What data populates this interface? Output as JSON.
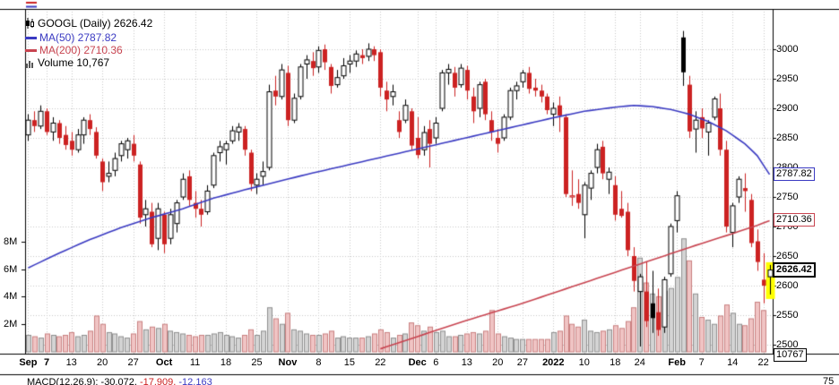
{
  "legend": {
    "symbol_line": "GOOGL (Daily) 2626.42",
    "ma50_line": "MA(50) 2787.82",
    "ma200_line": "MA(200) 2710.36",
    "volume_line": "Volume 10,767"
  },
  "right_axis": {
    "ticks": [
      3000,
      2950,
      2900,
      2850,
      2800,
      2750,
      2700,
      2650,
      2600,
      2550,
      2500
    ],
    "boxes": {
      "ma50": "2787.82",
      "ma200": "2710.36",
      "last": "2626.42",
      "volume": "10767"
    }
  },
  "left_axis": {
    "ticks": [
      {
        "v": 8,
        "t": "8M"
      },
      {
        "v": 6,
        "t": "6M"
      },
      {
        "v": 4,
        "t": "4M"
      },
      {
        "v": 2,
        "t": "2M"
      }
    ]
  },
  "x_axis": {
    "labels": [
      {
        "i": 0,
        "t": "Sep",
        "b": true
      },
      {
        "i": 3,
        "t": "7",
        "b": true
      },
      {
        "i": 7,
        "t": "13",
        "b": false
      },
      {
        "i": 12,
        "t": "20",
        "b": false
      },
      {
        "i": 17,
        "t": "27",
        "b": false
      },
      {
        "i": 22,
        "t": "Oct",
        "b": true
      },
      {
        "i": 27,
        "t": "11",
        "b": false
      },
      {
        "i": 32,
        "t": "18",
        "b": false
      },
      {
        "i": 37,
        "t": "25",
        "b": false
      },
      {
        "i": 42,
        "t": "Nov",
        "b": true
      },
      {
        "i": 47,
        "t": "8",
        "b": false
      },
      {
        "i": 52,
        "t": "15",
        "b": false
      },
      {
        "i": 57,
        "t": "22",
        "b": false
      },
      {
        "i": 63,
        "t": "Dec",
        "b": true
      },
      {
        "i": 66,
        "t": "6",
        "b": false
      },
      {
        "i": 71,
        "t": "13",
        "b": false
      },
      {
        "i": 76,
        "t": "20",
        "b": false
      },
      {
        "i": 80,
        "t": "27",
        "b": false
      },
      {
        "i": 85,
        "t": "2022",
        "b": true
      },
      {
        "i": 90,
        "t": "10",
        "b": false
      },
      {
        "i": 95,
        "t": "18",
        "b": false
      },
      {
        "i": 99,
        "t": "24",
        "b": false
      },
      {
        "i": 105,
        "t": "Feb",
        "b": true
      },
      {
        "i": 109,
        "t": "7",
        "b": false
      },
      {
        "i": 114,
        "t": "14",
        "b": false
      },
      {
        "i": 119,
        "t": "22",
        "b": false
      }
    ]
  },
  "bottom_panel": {
    "legend_parts": [
      {
        "t": "MACD(12,26,9): ",
        "c": "#000000"
      },
      {
        "t": "-30.072, ",
        "c": "#000000"
      },
      {
        "t": "-17.909, ",
        "c": "#cc2222"
      },
      {
        "t": "-12.163",
        "c": "#3a3ac2"
      }
    ],
    "right_label": "75"
  },
  "colors": {
    "up": "#000000",
    "down": "#cc2222",
    "ma50": "#3a3ac2",
    "ma200": "#c84450",
    "vol_up_fill": "#d4d4d4",
    "vol_up_stroke": "#8f8f8f",
    "vol_down_fill": "#f0c4c4",
    "vol_down_stroke": "#c98080",
    "grid": "#c9c9c9",
    "highlight": "#ffff00"
  },
  "chart_data": {
    "type": "candlestick",
    "title": "GOOGL (Daily)",
    "last_price": 2626.42,
    "ma50_last": 2787.82,
    "ma200_last": 2710.36,
    "volume_last": 10767,
    "price_axis_range": [
      2500,
      3000
    ],
    "volume_axis_max_millions": 8,
    "candles_format": [
      "date",
      "open",
      "high",
      "low",
      "close",
      "volume_millions"
    ],
    "candles": [
      [
        "Sep 1",
        2855,
        2890,
        2845,
        2880,
        1.2
      ],
      [
        "Sep 2",
        2880,
        2895,
        2860,
        2870,
        1.1
      ],
      [
        "Sep 3",
        2870,
        2905,
        2865,
        2895,
        1.0
      ],
      [
        "Sep 7",
        2895,
        2900,
        2855,
        2860,
        1.3
      ],
      [
        "Sep 8",
        2860,
        2885,
        2845,
        2875,
        1.2
      ],
      [
        "Sep 9",
        2875,
        2880,
        2840,
        2850,
        1.1
      ],
      [
        "Sep 10",
        2855,
        2870,
        2830,
        2838,
        1.2
      ],
      [
        "Sep 13",
        2845,
        2860,
        2820,
        2830,
        1.4
      ],
      [
        "Sep 14",
        2830,
        2865,
        2825,
        2855,
        1.1
      ],
      [
        "Sep 15",
        2855,
        2885,
        2840,
        2880,
        1.2
      ],
      [
        "Sep 16",
        2880,
        2890,
        2855,
        2865,
        1.5
      ],
      [
        "Sep 17",
        2860,
        2868,
        2815,
        2820,
        2.6
      ],
      [
        "Sep 20",
        2810,
        2815,
        2760,
        2775,
        2.0
      ],
      [
        "Sep 21",
        2785,
        2810,
        2775,
        2790,
        1.4
      ],
      [
        "Sep 22",
        2795,
        2825,
        2785,
        2815,
        1.3
      ],
      [
        "Sep 23",
        2820,
        2845,
        2810,
        2840,
        1.1
      ],
      [
        "Sep 24",
        2830,
        2850,
        2815,
        2845,
        1.0
      ],
      [
        "Sep 27",
        2840,
        2855,
        2810,
        2820,
        1.3
      ],
      [
        "Sep 28",
        2805,
        2810,
        2705,
        2715,
        2.2
      ],
      [
        "Sep 29",
        2720,
        2745,
        2700,
        2730,
        1.6
      ],
      [
        "Sep 30",
        2725,
        2740,
        2665,
        2670,
        1.8
      ],
      [
        "Oct 1",
        2680,
        2740,
        2660,
        2730,
        1.7
      ],
      [
        "Oct 4",
        2720,
        2725,
        2655,
        2670,
        2.0
      ],
      [
        "Oct 5",
        2680,
        2730,
        2670,
        2720,
        1.5
      ],
      [
        "Oct 6",
        2705,
        2745,
        2690,
        2740,
        1.4
      ],
      [
        "Oct 7",
        2750,
        2790,
        2745,
        2780,
        1.3
      ],
      [
        "Oct 8",
        2785,
        2795,
        2735,
        2745,
        1.2
      ],
      [
        "Oct 11",
        2740,
        2760,
        2715,
        2730,
        1.1
      ],
      [
        "Oct 12",
        2730,
        2745,
        2700,
        2720,
        1.2
      ],
      [
        "Oct 13",
        2725,
        2770,
        2720,
        2760,
        1.2
      ],
      [
        "Oct 14",
        2770,
        2825,
        2765,
        2820,
        1.3
      ],
      [
        "Oct 15",
        2825,
        2845,
        2810,
        2835,
        1.4
      ],
      [
        "Oct 18",
        2830,
        2845,
        2805,
        2840,
        1.2
      ],
      [
        "Oct 19",
        2845,
        2870,
        2840,
        2862,
        1.1
      ],
      [
        "Oct 20",
        2860,
        2875,
        2845,
        2868,
        1.0
      ],
      [
        "Oct 21",
        2865,
        2870,
        2820,
        2830,
        1.2
      ],
      [
        "Oct 22",
        2825,
        2830,
        2760,
        2772,
        1.6
      ],
      [
        "Oct 25",
        2770,
        2790,
        2755,
        2780,
        1.2
      ],
      [
        "Oct 26",
        2785,
        2810,
        2770,
        2793,
        1.5
      ],
      [
        "Oct 27",
        2800,
        2940,
        2795,
        2928,
        3.2
      ],
      [
        "Oct 28",
        2930,
        2955,
        2905,
        2920,
        2.4
      ],
      [
        "Oct 29",
        2920,
        2975,
        2915,
        2965,
        2.0
      ],
      [
        "Nov 1",
        2960,
        2972,
        2870,
        2880,
        2.8
      ],
      [
        "Nov 2",
        2880,
        2925,
        2875,
        2917,
        1.6
      ],
      [
        "Nov 3",
        2920,
        2975,
        2915,
        2970,
        1.5
      ],
      [
        "Nov 4",
        2975,
        2990,
        2950,
        2982,
        1.3
      ],
      [
        "Nov 5",
        2980,
        2995,
        2955,
        2968,
        1.2
      ],
      [
        "Nov 8",
        2970,
        3005,
        2960,
        2998,
        1.2
      ],
      [
        "Nov 9",
        3000,
        3008,
        2965,
        2978,
        1.3
      ],
      [
        "Nov 10",
        2970,
        2975,
        2925,
        2938,
        1.5
      ],
      [
        "Nov 11",
        2940,
        2965,
        2935,
        2952,
        1.0
      ],
      [
        "Nov 12",
        2955,
        2985,
        2950,
        2972,
        1.1
      ],
      [
        "Nov 15",
        2975,
        2990,
        2960,
        2980,
        1.0
      ],
      [
        "Nov 16",
        2980,
        2998,
        2970,
        2992,
        1.0
      ],
      [
        "Nov 17",
        2990,
        3000,
        2975,
        2985,
        1.0
      ],
      [
        "Nov 18",
        2988,
        3010,
        2980,
        3000,
        1.1
      ],
      [
        "Nov 19",
        3000,
        3005,
        2980,
        2990,
        1.3
      ],
      [
        "Nov 22",
        2995,
        3000,
        2920,
        2935,
        1.6
      ],
      [
        "Nov 23",
        2930,
        2945,
        2895,
        2915,
        1.4
      ],
      [
        "Nov 24",
        2920,
        2940,
        2905,
        2928,
        1.0
      ],
      [
        "Nov 26",
        2880,
        2895,
        2850,
        2860,
        1.2
      ],
      [
        "Nov 29",
        2880,
        2915,
        2875,
        2905,
        1.3
      ],
      [
        "Nov 30",
        2895,
        2900,
        2830,
        2837,
        2.1
      ],
      [
        "Dec 1",
        2850,
        2885,
        2815,
        2821,
        1.9
      ],
      [
        "Dec 2",
        2830,
        2870,
        2820,
        2859,
        1.5
      ],
      [
        "Dec 3",
        2865,
        2880,
        2800,
        2840,
        1.8
      ],
      [
        "Dec 6",
        2850,
        2885,
        2840,
        2875,
        1.4
      ],
      [
        "Dec 7",
        2900,
        2965,
        2895,
        2960,
        1.5
      ],
      [
        "Dec 8",
        2960,
        2975,
        2940,
        2966,
        1.1
      ],
      [
        "Dec 9",
        2960,
        2970,
        2920,
        2935,
        1.1
      ],
      [
        "Dec 10",
        2940,
        2975,
        2935,
        2968,
        1.2
      ],
      [
        "Dec 13",
        2965,
        2972,
        2915,
        2930,
        1.3
      ],
      [
        "Dec 14",
        2920,
        2935,
        2875,
        2895,
        1.4
      ],
      [
        "Dec 15",
        2900,
        2945,
        2885,
        2940,
        1.3
      ],
      [
        "Dec 16",
        2945,
        2950,
        2880,
        2890,
        1.5
      ],
      [
        "Dec 17",
        2880,
        2895,
        2845,
        2860,
        3.0
      ],
      [
        "Dec 20",
        2850,
        2865,
        2825,
        2840,
        1.3
      ],
      [
        "Dec 21",
        2850,
        2890,
        2845,
        2885,
        1.1
      ],
      [
        "Dec 22",
        2885,
        2935,
        2880,
        2930,
        1.0
      ],
      [
        "Dec 23",
        2930,
        2945,
        2915,
        2938,
        0.9
      ],
      [
        "Dec 27",
        2945,
        2965,
        2935,
        2960,
        0.9
      ],
      [
        "Dec 28",
        2960,
        2970,
        2925,
        2933,
        0.9
      ],
      [
        "Dec 29",
        2935,
        2950,
        2920,
        2930,
        0.9
      ],
      [
        "Dec 30",
        2930,
        2940,
        2910,
        2920,
        0.9
      ],
      [
        "Dec 31",
        2920,
        2925,
        2890,
        2897,
        0.9
      ],
      [
        "Jan 3",
        2890,
        2910,
        2870,
        2900,
        1.4
      ],
      [
        "Jan 4",
        2905,
        2920,
        2860,
        2888,
        1.5
      ],
      [
        "Jan 5",
        2885,
        2890,
        2750,
        2755,
        2.6
      ],
      [
        "Jan 6",
        2750,
        2795,
        2735,
        2752,
        2.0
      ],
      [
        "Jan 7",
        2755,
        2780,
        2730,
        2740,
        1.8
      ],
      [
        "Jan 10",
        2720,
        2775,
        2680,
        2770,
        2.3
      ],
      [
        "Jan 11",
        2765,
        2795,
        2745,
        2790,
        1.5
      ],
      [
        "Jan 12",
        2800,
        2840,
        2790,
        2830,
        1.4
      ],
      [
        "Jan 13",
        2835,
        2845,
        2780,
        2790,
        1.5
      ],
      [
        "Jan 14",
        2780,
        2800,
        2755,
        2792,
        1.6
      ],
      [
        "Jan 18",
        2770,
        2785,
        2710,
        2720,
        1.9
      ],
      [
        "Jan 19",
        2730,
        2760,
        2715,
        2718,
        1.7
      ],
      [
        "Jan 20",
        2725,
        2740,
        2650,
        2660,
        2.2
      ],
      [
        "Jan 21",
        2650,
        2665,
        2590,
        2608,
        3.2
      ],
      [
        "Jan 24",
        2590,
        2620,
        2497,
        2615,
        6.8
      ],
      [
        "Jan 25",
        2590,
        2640,
        2530,
        2540,
        5.0
      ],
      [
        "Jan 26",
        2570,
        2625,
        2520,
        2545,
        4.2
      ],
      [
        "Jan 27",
        2555,
        2595,
        2515,
        2525,
        4.0
      ],
      [
        "Jan 28",
        2530,
        2615,
        2520,
        2610,
        4.4
      ],
      [
        "Jan 31",
        2620,
        2705,
        2615,
        2700,
        4.6
      ],
      [
        "Feb 1",
        2710,
        2760,
        2690,
        2752,
        5.4
      ],
      [
        "Feb 2",
        3020,
        3031,
        2938,
        2961,
        8.2
      ],
      [
        "Feb 3",
        2940,
        2955,
        2850,
        2861,
        6.6
      ],
      [
        "Feb 4",
        2865,
        2895,
        2825,
        2880,
        4.2
      ],
      [
        "Feb 7",
        2885,
        2900,
        2850,
        2866,
        2.5
      ],
      [
        "Feb 8",
        2860,
        2880,
        2820,
        2875,
        2.3
      ],
      [
        "Feb 9",
        2885,
        2920,
        2880,
        2916,
        2.0
      ],
      [
        "Feb 10",
        2900,
        2925,
        2820,
        2830,
        2.6
      ],
      [
        "Feb 11",
        2830,
        2845,
        2690,
        2700,
        3.4
      ],
      [
        "Feb 14",
        2690,
        2740,
        2665,
        2735,
        2.8
      ],
      [
        "Feb 15",
        2750,
        2785,
        2740,
        2780,
        2.0
      ],
      [
        "Feb 16",
        2765,
        2790,
        2725,
        2760,
        1.9
      ],
      [
        "Feb 17",
        2745,
        2755,
        2665,
        2672,
        2.4
      ],
      [
        "Feb 18",
        2675,
        2695,
        2625,
        2640,
        3.6
      ],
      [
        "Feb 22",
        2610,
        2655,
        2570,
        2600,
        3.0
      ],
      [
        "Feb 23",
        2615,
        2635,
        2585,
        2626.42,
        0.01
      ]
    ],
    "ma50_anchors": [
      [
        0,
        2630
      ],
      [
        5,
        2655
      ],
      [
        10,
        2678
      ],
      [
        15,
        2698
      ],
      [
        20,
        2715
      ],
      [
        25,
        2730
      ],
      [
        30,
        2748
      ],
      [
        35,
        2762
      ],
      [
        40,
        2775
      ],
      [
        45,
        2788
      ],
      [
        50,
        2800
      ],
      [
        55,
        2812
      ],
      [
        60,
        2824
      ],
      [
        65,
        2836
      ],
      [
        70,
        2848
      ],
      [
        75,
        2860
      ],
      [
        80,
        2872
      ],
      [
        85,
        2884
      ],
      [
        90,
        2895
      ],
      [
        95,
        2902
      ],
      [
        98,
        2905
      ],
      [
        101,
        2903
      ],
      [
        104,
        2898
      ],
      [
        107,
        2890
      ],
      [
        110,
        2878
      ],
      [
        113,
        2862
      ],
      [
        116,
        2840
      ],
      [
        118,
        2820
      ],
      [
        120,
        2788
      ]
    ],
    "ma200_anchors": [
      [
        57,
        2493
      ],
      [
        70,
        2538
      ],
      [
        80,
        2570
      ],
      [
        90,
        2605
      ],
      [
        100,
        2640
      ],
      [
        108,
        2668
      ],
      [
        114,
        2688
      ],
      [
        118,
        2702
      ],
      [
        120,
        2710
      ]
    ]
  }
}
